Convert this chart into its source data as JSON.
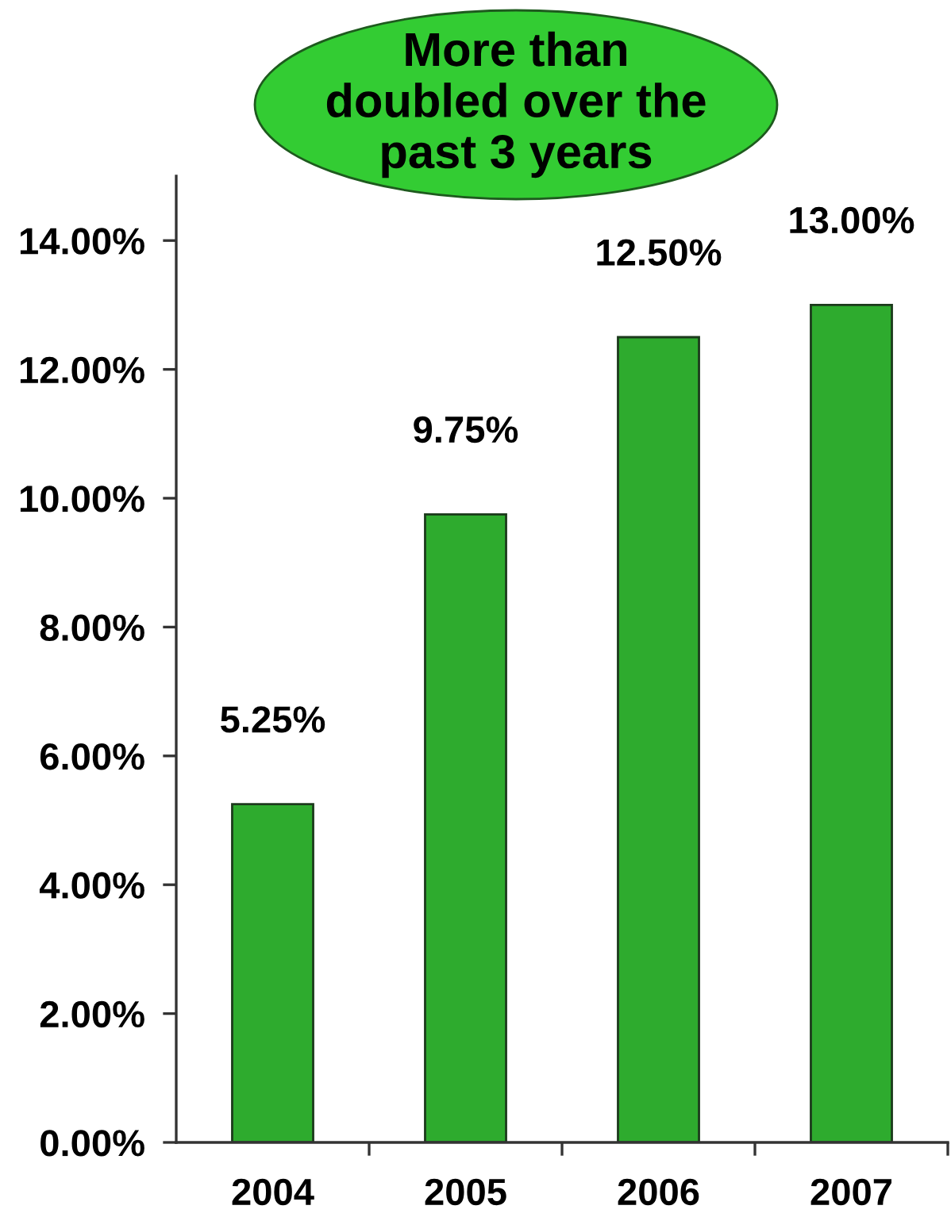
{
  "chart_data": {
    "type": "bar",
    "categories": [
      "2004",
      "2005",
      "2006",
      "2007"
    ],
    "values": [
      5.25,
      9.75,
      12.5,
      13.0
    ],
    "color": "#2eab2e",
    "value_labels": [
      "5.25%",
      "9.75%",
      "12.50%",
      "13.00%"
    ],
    "ylim": [
      0,
      15
    ],
    "yticks": [
      {
        "value": 0,
        "label": "0.00%"
      },
      {
        "value": 2,
        "label": "2.00%"
      },
      {
        "value": 4,
        "label": "4.00%"
      },
      {
        "value": 6,
        "label": "6.00%"
      },
      {
        "value": 8,
        "label": "8.00%"
      },
      {
        "value": 10,
        "label": "10.00%"
      },
      {
        "value": 12,
        "label": "12.00%"
      },
      {
        "value": 14,
        "label": "14.00%"
      }
    ],
    "annotations": [
      "More than\ndoubled over the\npast 3 years"
    ]
  }
}
